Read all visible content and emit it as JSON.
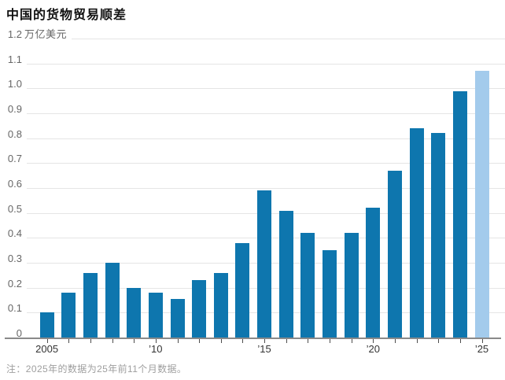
{
  "page": {
    "title": "中国的货物贸易顺差",
    "note": "注：2025年的数据为25年前11个月数据。"
  },
  "chart_data": {
    "type": "bar",
    "title": "中国的货物贸易顺差",
    "unit": "万亿美元",
    "categories": [
      2005,
      2006,
      2007,
      2008,
      2009,
      2010,
      2011,
      2012,
      2013,
      2014,
      2015,
      2016,
      2017,
      2018,
      2019,
      2020,
      2021,
      2022,
      2023,
      2024,
      2025
    ],
    "values": [
      0.1,
      0.18,
      0.26,
      0.3,
      0.2,
      0.18,
      0.155,
      0.23,
      0.26,
      0.38,
      0.59,
      0.51,
      0.42,
      0.35,
      0.42,
      0.52,
      0.67,
      0.84,
      0.82,
      0.99,
      1.07
    ],
    "highlight_index": 20,
    "highlight_note": "2025年的数据为25年前11个月数据",
    "ylim": [
      0,
      1.2
    ],
    "grid": true,
    "legend": null,
    "yticks": [
      {
        "value": 0,
        "label": "0"
      },
      {
        "value": 0.1,
        "label": "0.1"
      },
      {
        "value": 0.2,
        "label": "0.2"
      },
      {
        "value": 0.3,
        "label": "0.3"
      },
      {
        "value": 0.4,
        "label": "0.4"
      },
      {
        "value": 0.5,
        "label": "0.5"
      },
      {
        "value": 0.6,
        "label": "0.6"
      },
      {
        "value": 0.7,
        "label": "0.7"
      },
      {
        "value": 0.8,
        "label": "0.8"
      },
      {
        "value": 0.9,
        "label": "0.9"
      },
      {
        "value": 1.0,
        "label": "1.0"
      },
      {
        "value": 1.1,
        "label": "1.1"
      },
      {
        "value": 1.2,
        "label": "1.2",
        "suffix": "万亿美元"
      }
    ],
    "xticks": [
      {
        "bar_index": 0,
        "label": "2005"
      },
      {
        "bar_index": 5,
        "label": "’10"
      },
      {
        "bar_index": 10,
        "label": "’15"
      },
      {
        "bar_index": 15,
        "label": "’20"
      },
      {
        "bar_index": 20,
        "label": "’25"
      }
    ],
    "colors": {
      "bar": "#0e76ae",
      "highlight": "#a3cbec",
      "grid": "#e5e5e5",
      "axis": "#8a8a8a",
      "title": "#111111",
      "ytick": "#666666",
      "xtick": "#333333",
      "note": "#9e9e9e"
    }
  }
}
